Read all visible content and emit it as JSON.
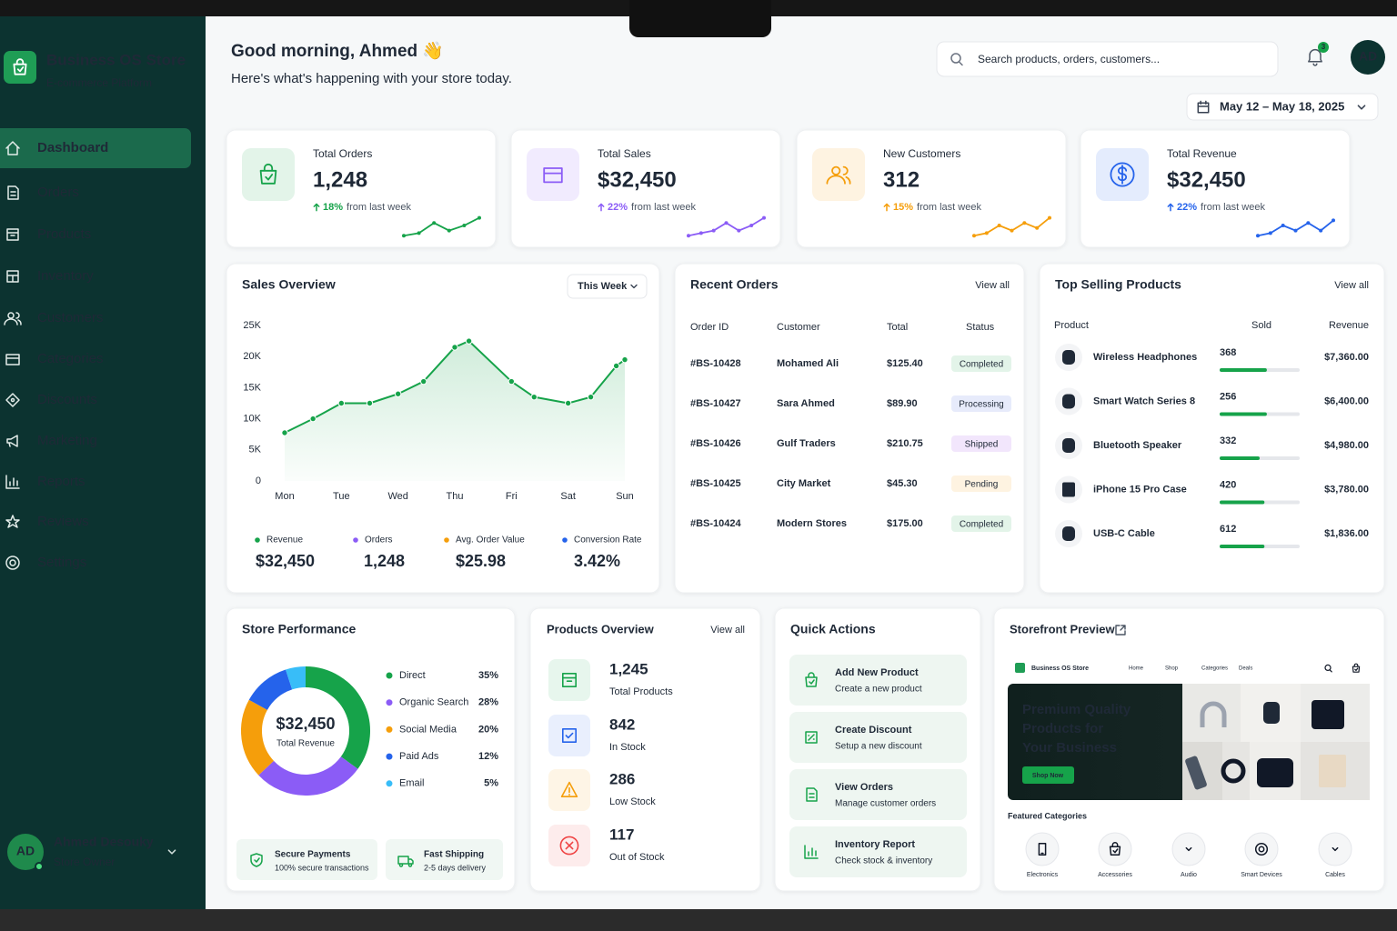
{
  "sidebar": {
    "brand": "Business OS Store",
    "tagline": "E-commerce Platform",
    "nav": [
      "Dashboard",
      "Orders",
      "Products",
      "Inventory",
      "Customers",
      "Categories",
      "Discounts",
      "Marketing",
      "Reports",
      "Reviews",
      "Settings"
    ],
    "user": {
      "initials": "AD",
      "name": "Ahmed Desouky",
      "role": "Store Owner"
    }
  },
  "header": {
    "greeting": "Good morning, Ahmed 👋",
    "subtitle": "Here's what's happening with your store today.",
    "search_placeholder": "Search products, orders, customers...",
    "notification_count": "3",
    "avatar": "AD",
    "date_range": "May 12 – May 18, 2025"
  },
  "kpis": [
    {
      "label": "Total Orders",
      "value": "1,248",
      "change": "18%",
      "change_text": "from last week",
      "color": "#16a34a",
      "trend": {
        "values": [
          1,
          2,
          6,
          3,
          5,
          8
        ],
        "ylim": [
          0,
          10
        ]
      }
    },
    {
      "label": "Total Sales",
      "value": "$32,450",
      "change": "22%",
      "change_text": "from last week",
      "color": "#8b5cf6",
      "trend": {
        "values": [
          1,
          2,
          3,
          6,
          3,
          5,
          8
        ],
        "ylim": [
          0,
          10
        ]
      }
    },
    {
      "label": "New Customers",
      "value": "312",
      "change": "15%",
      "change_text": "from last week",
      "color": "#f59e0b",
      "trend": {
        "values": [
          1,
          2,
          5,
          3,
          6,
          4,
          8
        ],
        "ylim": [
          0,
          10
        ]
      }
    },
    {
      "label": "Total Revenue",
      "value": "$32,450",
      "change": "22%",
      "change_text": "from last week",
      "color": "#2563eb",
      "trend": {
        "values": [
          1,
          2,
          5,
          3,
          6,
          3,
          7
        ],
        "ylim": [
          0,
          10
        ]
      }
    }
  ],
  "sales_overview": {
    "title": "Sales Overview",
    "period": "This Week",
    "chart": {
      "type": "line",
      "color": "#16a34a",
      "x": [
        0,
        0.5,
        1,
        1.5,
        2,
        2.45,
        3,
        3.25,
        4,
        4.4,
        5,
        5.4,
        5.85,
        6
      ],
      "values": [
        7750,
        10000,
        12500,
        12500,
        14000,
        16000,
        21500,
        22500,
        16000,
        13500,
        12500,
        13500,
        18500,
        19500
      ],
      "xlim": [
        0,
        6
      ],
      "xticks": [
        {
          "value": 0,
          "label": "Mon"
        },
        {
          "value": 1,
          "label": "Tue"
        },
        {
          "value": 2,
          "label": "Wed"
        },
        {
          "value": 3,
          "label": "Thu"
        },
        {
          "value": 4,
          "label": "Fri"
        },
        {
          "value": 5,
          "label": "Sat"
        },
        {
          "value": 6,
          "label": "Sun"
        }
      ],
      "ylim": [
        0,
        25000
      ],
      "yticks": [
        0,
        {
          "value": 5000,
          "label": "5K"
        },
        {
          "value": 10000,
          "label": "10K"
        },
        {
          "value": 15000,
          "label": "15K"
        },
        {
          "value": 20000,
          "label": "20K"
        },
        {
          "value": 25000,
          "label": "25K"
        }
      ]
    },
    "stats": [
      {
        "name": "Revenue",
        "value": "$32,450",
        "color": "#16a34a"
      },
      {
        "name": "Orders",
        "value": "1,248",
        "color": "#8b5cf6"
      },
      {
        "name": "Avg. Order Value",
        "value": "$25.98",
        "color": "#f59e0b"
      },
      {
        "name": "Conversion Rate",
        "value": "3.42%",
        "color": "#2563eb"
      }
    ]
  },
  "recent_orders": {
    "title": "Recent Orders",
    "view_all": "View all",
    "columns": [
      "Order ID",
      "Customer",
      "Total",
      "Status"
    ],
    "rows": [
      {
        "id": "#BS-10428",
        "customer": "Mohamed Ali",
        "total": "$125.40",
        "status": "Completed",
        "status_color": "#16a34a"
      },
      {
        "id": "#BS-10427",
        "customer": "Sara Ahmed",
        "total": "$89.90",
        "status": "Processing",
        "status_color": "#3b5bdb"
      },
      {
        "id": "#BS-10426",
        "customer": "Gulf Traders",
        "total": "$210.75",
        "status": "Shipped",
        "status_color": "#9333ea"
      },
      {
        "id": "#BS-10425",
        "customer": "City Market",
        "total": "$45.30",
        "status": "Pending",
        "status_color": "#f59e0b"
      },
      {
        "id": "#BS-10424",
        "customer": "Modern Stores",
        "total": "$175.00",
        "status": "Completed",
        "status_color": "#16a34a"
      }
    ]
  },
  "top_products": {
    "title": "Top Selling Products",
    "view_all": "View all",
    "columns": [
      "Product",
      "Sold",
      "Revenue"
    ],
    "progress_lim": [
      0,
      100
    ],
    "rows": [
      {
        "name": "Wireless Headphones",
        "sold": "368",
        "revenue": "$7,360.00",
        "progress": 59
      },
      {
        "name": "Smart Watch Series 8",
        "sold": "256",
        "revenue": "$6,400.00",
        "progress": 59
      },
      {
        "name": "Bluetooth Speaker",
        "sold": "332",
        "revenue": "$4,980.00",
        "progress": 50
      },
      {
        "name": "iPhone 15 Pro Case",
        "sold": "420",
        "revenue": "$3,780.00",
        "progress": 56
      },
      {
        "name": "USB-C Cable",
        "sold": "612",
        "revenue": "$1,836.00",
        "progress": 56
      }
    ]
  },
  "store_performance": {
    "title": "Store Performance",
    "chart": {
      "type": "donut",
      "categories": [
        "Direct",
        "Organic Search",
        "Social Media",
        "Paid Ads",
        "Email"
      ],
      "values": [
        35,
        28,
        20,
        12,
        5
      ],
      "value_labels": [
        "35%",
        "28%",
        "20%",
        "12%",
        "5%"
      ],
      "colors": [
        "#16a34a",
        "#8b5cf6",
        "#f59e0b",
        "#2563eb",
        "#38bdf8"
      ],
      "center_value": "$32,450",
      "center_label": "Total Revenue"
    },
    "badges": [
      {
        "title": "Secure Payments",
        "subtitle": "100% secure transactions"
      },
      {
        "title": "Fast Shipping",
        "subtitle": "2-5 days delivery"
      }
    ]
  },
  "products_overview": {
    "title": "Products Overview",
    "view_all": "View all",
    "items": [
      {
        "value": "1,245",
        "label": "Total Products",
        "color": "#16a34a"
      },
      {
        "value": "842",
        "label": "In Stock",
        "color": "#2563eb"
      },
      {
        "value": "286",
        "label": "Low Stock",
        "color": "#f59e0b"
      },
      {
        "value": "117",
        "label": "Out of Stock",
        "color": "#ef4444"
      }
    ]
  },
  "quick_actions": {
    "title": "Quick Actions",
    "items": [
      {
        "title": "Add New Product",
        "subtitle": "Create a new product"
      },
      {
        "title": "Create Discount",
        "subtitle": "Setup a new discount"
      },
      {
        "title": "View Orders",
        "subtitle": "Manage customer orders"
      },
      {
        "title": "Inventory Report",
        "subtitle": "Check stock & inventory"
      }
    ]
  },
  "storefront_preview": {
    "title": "Storefront Preview",
    "brand": "Business OS Store",
    "nav": [
      "Home",
      "Shop",
      "Categories",
      "Deals"
    ],
    "hero": [
      "Premium Quality",
      "Products for",
      "Your Business"
    ],
    "button": "Shop Now",
    "featured_title": "Featured Categories",
    "categories": [
      "Electronics",
      "Accessories",
      "Audio",
      "Smart Devices",
      "Cables"
    ]
  }
}
